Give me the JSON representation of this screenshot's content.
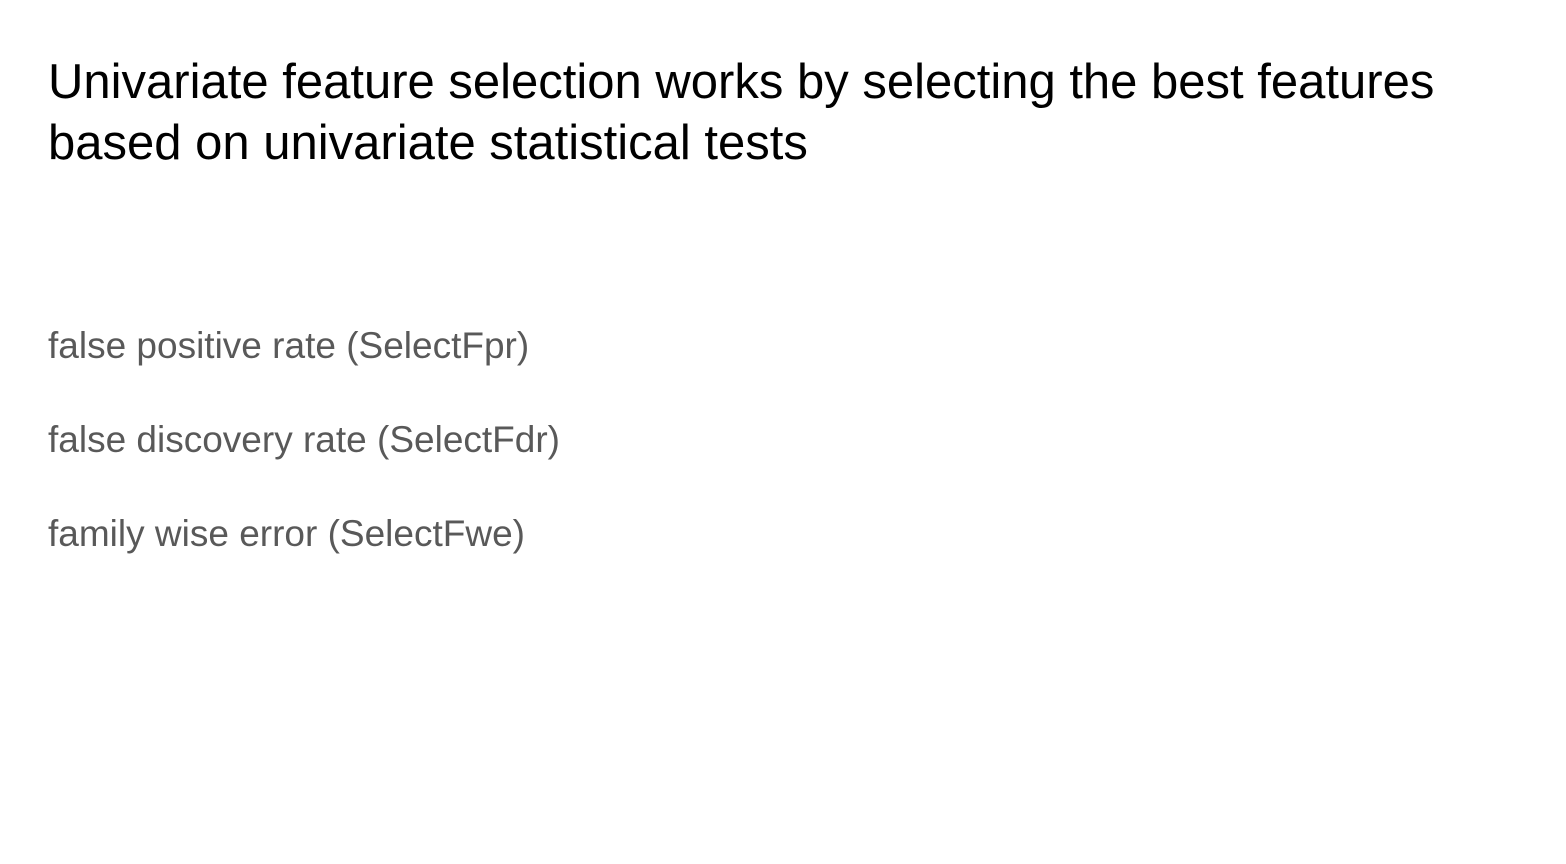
{
  "slide": {
    "title": "Univariate feature selection works by selecting the best features based on univariate statistical tests",
    "items": [
      "false positive rate (SelectFpr)",
      "false discovery rate (SelectFdr)",
      "family wise error (SelectFwe)"
    ]
  },
  "colors": {
    "background": "#ffffff",
    "title": "#000000",
    "body_text": "#595959"
  }
}
